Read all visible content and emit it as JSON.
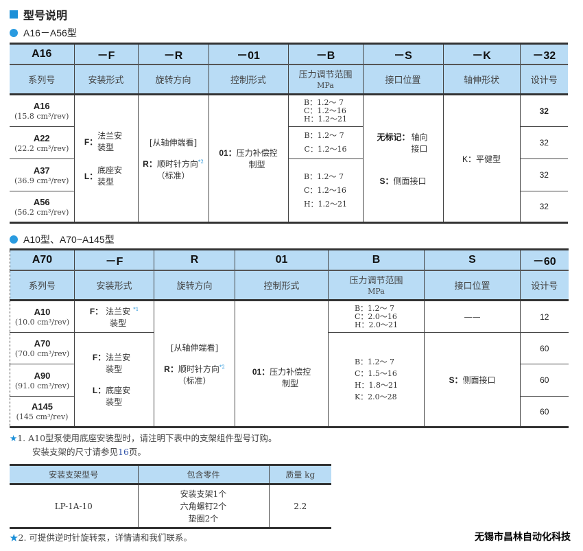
{
  "title": "型号说明",
  "section1": {
    "subtitle": "A16－A56型",
    "codes": [
      "A16",
      "－F",
      "－R",
      "－01",
      "－B",
      "－S",
      "－K",
      "－32"
    ],
    "labels": [
      "系列号",
      "安装形式",
      "旋转方向",
      "控制形式",
      "压力调节范围",
      "接口位置",
      "轴伸形状",
      "设计号"
    ],
    "mpa": "MPa",
    "series": [
      {
        "name": "A16",
        "disp": "(15.8 cm³/rev)"
      },
      {
        "name": "A22",
        "disp": "(22.2 cm³/rev)"
      },
      {
        "name": "A37",
        "disp": "(36.9 cm³/rev)"
      },
      {
        "name": "A56",
        "disp": "(56.2 cm³/rev)"
      }
    ],
    "mount": [
      {
        "code": "F：",
        "text": "法兰安装型"
      },
      {
        "code": "L：",
        "text": "底座安装型"
      }
    ],
    "rotation": {
      "view": "[从轴伸端看]",
      "code": "R：",
      "text": "顺时针方向",
      "std": "（标准）",
      "note": "*2"
    },
    "control": {
      "code": "01：",
      "text": "压力补偿控制型"
    },
    "pressure": [
      [
        "B：1.2～ 7",
        "C：1.2～16",
        "H：1.2～21"
      ],
      [
        "B：1.2～ 7",
        "C：1.2～16"
      ],
      [
        "B：1.2～ 7",
        "C：1.2～16",
        "H：1.2～21"
      ]
    ],
    "port": [
      {
        "code": "无标记：",
        "text": "轴向接口"
      },
      {
        "code": "S：",
        "text": "侧面接口"
      }
    ],
    "shaft": {
      "code": "K：",
      "text": "平健型"
    },
    "design": [
      "32",
      "32",
      "32",
      "32"
    ]
  },
  "section2": {
    "subtitle": "A10型、A70~A145型",
    "codes": [
      "A70",
      "－F",
      "R",
      "01",
      "B",
      "S",
      "－60"
    ],
    "labels": [
      "系列号",
      "安装形式",
      "旋转方向",
      "控制形式",
      "压力调节范围",
      "接口位置",
      "设计号"
    ],
    "mpa": "MPa",
    "series": [
      {
        "name": "A10",
        "disp": "(10.0 cm³/rev)"
      },
      {
        "name": "A70",
        "disp": "(70.0 cm³/rev)"
      },
      {
        "name": "A90",
        "disp": "(91.0 cm³/rev)"
      },
      {
        "name": "A145",
        "disp": "(145 cm³/rev)"
      }
    ],
    "mount_a10": {
      "code": "F：",
      "text": "法兰安装型",
      "note": "*1"
    },
    "mount": [
      {
        "code": "F：",
        "text": "法兰安装型"
      },
      {
        "code": "L：",
        "text": "底座安装型"
      }
    ],
    "rotation": {
      "view": "[从轴伸端看]",
      "code": "R：",
      "text": "顺时针方向",
      "std": "（标准）",
      "note": "*2"
    },
    "control": {
      "code": "01：",
      "text": "压力补偿控制型"
    },
    "pressure": [
      [
        "B：1.2～ 7",
        "C：2.0～16",
        "H：2.0～21"
      ],
      [
        "B：1.2～ 7",
        "C：1.5～16",
        "H：1.8～21",
        "K：2.0～28"
      ]
    ],
    "port": [
      "——",
      {
        "code": "S：",
        "text": "侧面接口"
      }
    ],
    "design": [
      "12",
      "60",
      "60",
      "60"
    ]
  },
  "notes": {
    "n1_star": "★",
    "n1": "1. A10型泵使用底座安装型时，请注明下表中的支架组件型号订购。",
    "n1b_pre": "安装支架的尺寸请参见",
    "n1b_page": "16",
    "n1b_post": "页。",
    "n2_star": "★",
    "n2": "2. 可提供逆时针旋转泵，详情请和我们联系。"
  },
  "bracket": {
    "headers": [
      "安装支架型号",
      "包含零件",
      "质量  kg"
    ],
    "model": "LP-1A-10",
    "parts": [
      "安装支架1个",
      "六角螺钉2个",
      "垫圈2个"
    ],
    "mass": "2.2"
  },
  "company": "无锡市昌林自动化科技"
}
